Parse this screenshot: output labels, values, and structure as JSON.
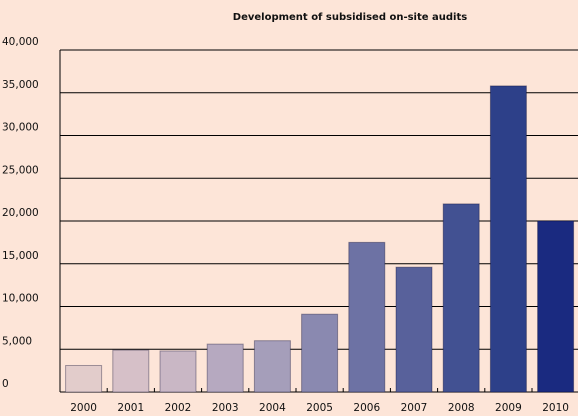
{
  "chart_data": {
    "type": "bar",
    "title": "Development of subsidised on-site audits",
    "categories": [
      "2000",
      "2001",
      "2002",
      "2003",
      "2004",
      "2005",
      "2006",
      "2007",
      "2008",
      "2009",
      "2010"
    ],
    "values": [
      3100,
      4900,
      4800,
      5600,
      6000,
      9100,
      17500,
      14600,
      22000,
      35800,
      20000
    ],
    "colors": [
      "#e2cccb",
      "#d6c0c8",
      "#c9b7c5",
      "#b6a9c0",
      "#a59eba",
      "#8a89b0",
      "#6d72a4",
      "#58619b",
      "#425192",
      "#2d4089",
      "#1a2a80"
    ],
    "ylim": [
      0,
      40000
    ],
    "yticks": [
      0,
      {
        "value": 5000,
        "label": "5,000"
      },
      {
        "value": 10000,
        "label": "10,000"
      },
      {
        "value": 15000,
        "label": "15,000"
      },
      {
        "value": 20000,
        "label": "20,000"
      },
      {
        "value": 25000,
        "label": "25,000"
      },
      {
        "value": 30000,
        "label": "30,000"
      },
      {
        "value": 35000,
        "label": "35,000"
      },
      {
        "value": 40000,
        "label": "40,000"
      }
    ],
    "grid": true
  }
}
